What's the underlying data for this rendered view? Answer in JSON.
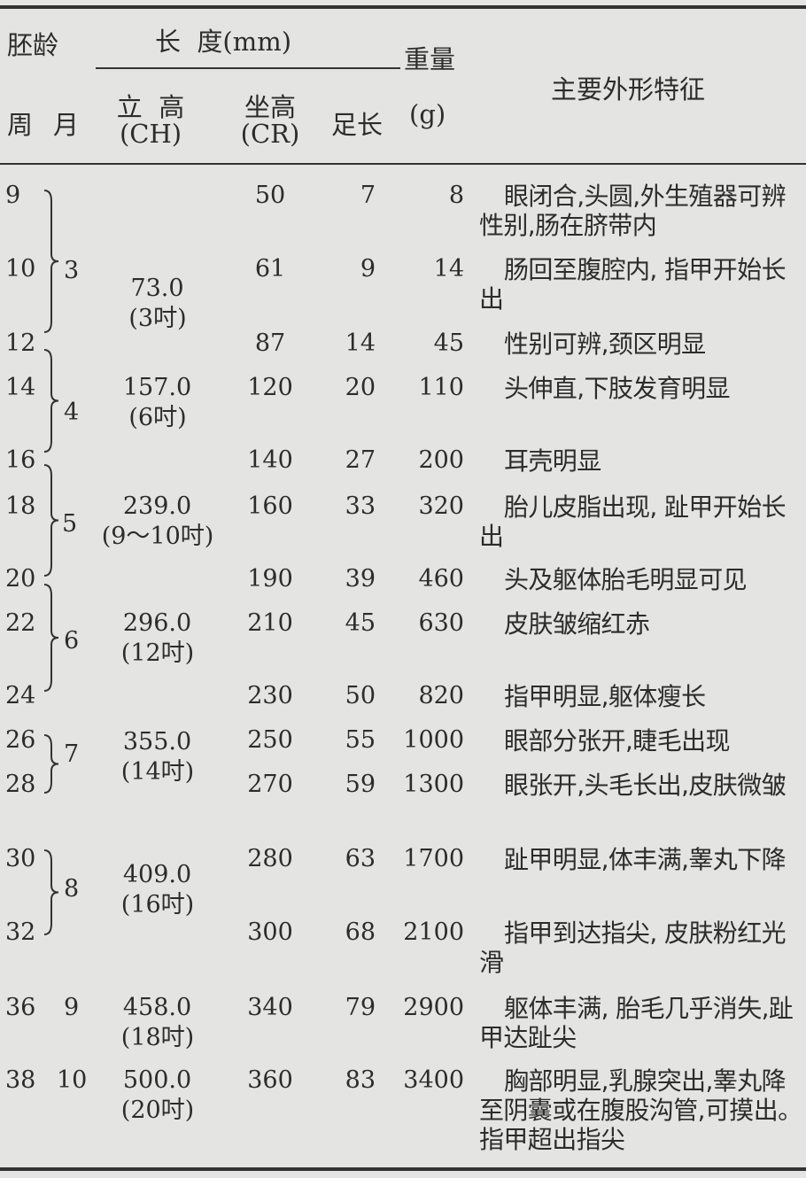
{
  "header": {
    "age": "胚龄",
    "length": "长  度(mm)",
    "weight": "重量",
    "weight_unit": "(g)",
    "features": "主要外形特征",
    "week": "周",
    "month": "月",
    "ch": "立  高",
    "ch_abbr": "(CH)",
    "cr": "坐高",
    "cr_abbr": "(CR)",
    "foot": "足长"
  },
  "rows": [
    {
      "week": "9",
      "cr": "50",
      "foot": "7",
      "weight": "8",
      "desc": "眼闭合,头圆,外生殖器可辨性别,肠在脐带内"
    },
    {
      "week": "10",
      "cr": "61",
      "foot": "9",
      "weight": "14",
      "desc": "肠回至腹腔内, 指甲开始长出"
    },
    {
      "week": "12",
      "cr": "87",
      "foot": "14",
      "weight": "45",
      "desc": "性别可辨,颈区明显"
    },
    {
      "week": "14",
      "cr": "120",
      "foot": "20",
      "weight": "110",
      "desc": "头伸直,下肢发育明显"
    },
    {
      "week": "16",
      "cr": "140",
      "foot": "27",
      "weight": "200",
      "desc": "耳壳明显"
    },
    {
      "week": "18",
      "cr": "160",
      "foot": "33",
      "weight": "320",
      "desc": "胎儿皮脂出现, 趾甲开始长出"
    },
    {
      "week": "20",
      "cr": "190",
      "foot": "39",
      "weight": "460",
      "desc": "头及躯体胎毛明显可见"
    },
    {
      "week": "22",
      "cr": "210",
      "foot": "45",
      "weight": "630",
      "desc": "皮肤皱缩红赤"
    },
    {
      "week": "24",
      "cr": "230",
      "foot": "50",
      "weight": "820",
      "desc": "指甲明显,躯体瘦长"
    },
    {
      "week": "26",
      "cr": "250",
      "foot": "55",
      "weight": "1000",
      "desc": "眼部分张开,睫毛出现"
    },
    {
      "week": "28",
      "cr": "270",
      "foot": "59",
      "weight": "1300",
      "desc": "眼张开,头毛长出,皮肤微皱"
    },
    {
      "week": "30",
      "cr": "280",
      "foot": "63",
      "weight": "1700",
      "desc": "趾甲明显,体丰满,睾丸下降"
    },
    {
      "week": "32",
      "cr": "300",
      "foot": "68",
      "weight": "2100",
      "desc": "指甲到达指尖, 皮肤粉红光滑"
    },
    {
      "week": "36",
      "cr": "340",
      "foot": "79",
      "weight": "2900",
      "desc": "躯体丰满, 胎毛几乎消失,趾甲达趾尖"
    },
    {
      "week": "38",
      "cr": "360",
      "foot": "83",
      "weight": "3400",
      "desc": "胸部明显,乳腺突出,睾丸降至阴囊或在腹股沟管,可摸出。指甲超出指尖"
    }
  ],
  "months": [
    {
      "month": "3",
      "ch": "73.0",
      "inch": "(3吋)"
    },
    {
      "month": "4",
      "ch": "157.0",
      "inch": "(6吋)"
    },
    {
      "month": "5",
      "ch": "239.0",
      "inch": "(9～10吋)"
    },
    {
      "month": "6",
      "ch": "296.0",
      "inch": "(12吋)"
    },
    {
      "month": "7",
      "ch": "355.0",
      "inch": "(14吋)"
    },
    {
      "month": "8",
      "ch": "409.0",
      "inch": "(16吋)"
    },
    {
      "month": "9",
      "ch": "458.0",
      "inch": "(18吋)"
    },
    {
      "month": "10",
      "ch": "500.0",
      "inch": "(20吋)"
    }
  ]
}
